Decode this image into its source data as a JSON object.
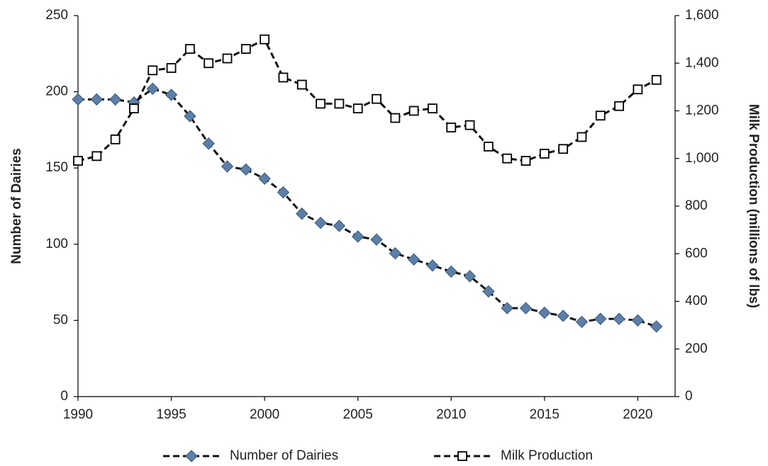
{
  "chart_data": {
    "type": "line",
    "x": [
      1990,
      1991,
      1992,
      1993,
      1994,
      1995,
      1996,
      1997,
      1998,
      1999,
      2000,
      2001,
      2002,
      2003,
      2004,
      2005,
      2006,
      2007,
      2008,
      2009,
      2010,
      2011,
      2012,
      2013,
      2014,
      2015,
      2016,
      2017,
      2018,
      2019,
      2020,
      2021
    ],
    "series": [
      {
        "name": "Number of Dairies",
        "color": "#5b7fa8",
        "marker": "diamond",
        "values": [
          195,
          195,
          195,
          193,
          202,
          198,
          184,
          166,
          151,
          149,
          143,
          134,
          120,
          114,
          112,
          105,
          103,
          94,
          90,
          86,
          82,
          79,
          69,
          58,
          58,
          55,
          53,
          49,
          51,
          51,
          50,
          46
        ]
      },
      {
        "name": "Milk Production",
        "color": "#ffffff",
        "marker": "square",
        "axis": "y2",
        "values": [
          990,
          1010,
          1080,
          1210,
          1370,
          1380,
          1460,
          1400,
          1420,
          1460,
          1500,
          1340,
          1310,
          1230,
          1230,
          1210,
          1250,
          1170,
          1200,
          1210,
          1130,
          1140,
          1050,
          1000,
          990,
          1020,
          1040,
          1090,
          1180,
          1220,
          1290,
          1330
        ]
      }
    ],
    "y_label": "Number of Dairies",
    "y2_label": "Milk Production (millions of lbs)",
    "xlim": [
      1990,
      2022
    ],
    "xticks": [
      1990,
      1995,
      2000,
      2005,
      2010,
      2015,
      2020
    ],
    "ylim": [
      0,
      250
    ],
    "yticks": [
      0,
      50,
      100,
      150,
      200,
      250
    ],
    "y2lim": [
      0,
      1600
    ],
    "y2ticks": [
      0,
      200,
      400,
      600,
      800,
      {
        "value": 1000,
        "label": "1,000"
      },
      {
        "value": 1200,
        "label": "1,200"
      },
      {
        "value": 1400,
        "label": "1,400"
      },
      {
        "value": 1600,
        "label": "1,600"
      }
    ],
    "grid": false,
    "legend": "bottom"
  }
}
